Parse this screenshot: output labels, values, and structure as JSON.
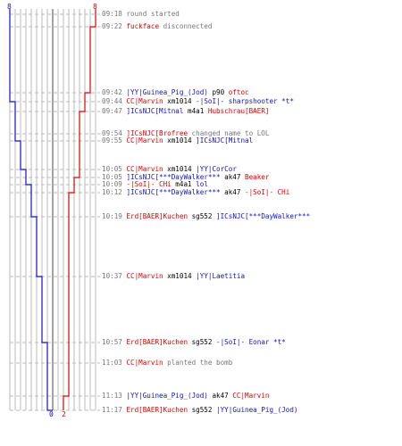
{
  "colors": {
    "team_blue": "#1010cc",
    "team_red": "#e00000",
    "muted": "#777777",
    "grid": "#bbbbbb",
    "dash": "#bbbbbb",
    "center": "#666666"
  },
  "scores": {
    "blue_top": "8",
    "red_top": "8",
    "blue_bottom": "0",
    "red_bottom": "2"
  },
  "events": [
    {
      "time": "09:18",
      "parts": [
        {
          "text": "round started",
          "style": "ev"
        }
      ]
    },
    {
      "time": "09:22",
      "parts": [
        {
          "text": "fuckface",
          "style": "red"
        },
        {
          "text": " disconnected",
          "style": "ev"
        }
      ]
    },
    {
      "time": "09:42",
      "parts": [
        {
          "text": "|YY|Guinea_Pig_(Jod)",
          "style": "blue"
        },
        {
          "text": " p90 ",
          "style": "plain"
        },
        {
          "text": "oftoc",
          "style": "red"
        }
      ]
    },
    {
      "time": "09:44",
      "parts": [
        {
          "text": "CC|Marvin",
          "style": "red"
        },
        {
          "text": " xm1014 ",
          "style": "plain"
        },
        {
          "text": "-|SoI|- sharpshooter *t*",
          "style": "blue"
        }
      ]
    },
    {
      "time": "09:47",
      "parts": [
        {
          "text": "]ICsNJC[Mitnal",
          "style": "blue"
        },
        {
          "text": " m4a1 ",
          "style": "plain"
        },
        {
          "text": "Hubschrau[BAER]",
          "style": "red"
        }
      ]
    },
    {
      "time": "09:54",
      "parts": [
        {
          "text": "]ICsNJC[Brofree",
          "style": "red"
        },
        {
          "text": " changed name to LOL",
          "style": "ev"
        }
      ]
    },
    {
      "time": "09:55",
      "parts": [
        {
          "text": "CC|Marvin",
          "style": "red"
        },
        {
          "text": " xm1014 ",
          "style": "plain"
        },
        {
          "text": "]ICsNJC[Mitnal",
          "style": "blue"
        }
      ]
    },
    {
      "time": "10:05",
      "parts": [
        {
          "text": "CC|Marvin",
          "style": "red"
        },
        {
          "text": " xm1014 ",
          "style": "plain"
        },
        {
          "text": "|YY|CorCor",
          "style": "blue"
        }
      ]
    },
    {
      "time": "10:05",
      "parts": [
        {
          "text": "]ICsNJC[***DayWalker***",
          "style": "blue"
        },
        {
          "text": " ak47 ",
          "style": "plain"
        },
        {
          "text": "Beaker",
          "style": "red"
        }
      ]
    },
    {
      "time": "10:09",
      "parts": [
        {
          "text": "-|SoI|- CHi",
          "style": "red"
        },
        {
          "text": " m4a1 ",
          "style": "plain"
        },
        {
          "text": "lol",
          "style": "blue"
        }
      ]
    },
    {
      "time": "10:12",
      "parts": [
        {
          "text": "]ICsNJC[***DayWalker***",
          "style": "blue"
        },
        {
          "text": " ak47 ",
          "style": "plain"
        },
        {
          "text": "-|SoI|- CHi",
          "style": "red"
        }
      ]
    },
    {
      "time": "10:19",
      "parts": [
        {
          "text": "Erd[BAER]Kuchen",
          "style": "red"
        },
        {
          "text": " sg552 ",
          "style": "plain"
        },
        {
          "text": "]ICsNJC[***DayWalker***",
          "style": "blue"
        }
      ]
    },
    {
      "time": "10:37",
      "parts": [
        {
          "text": "CC|Marvin",
          "style": "red"
        },
        {
          "text": " xm1014 ",
          "style": "plain"
        },
        {
          "text": "|YY|Laetitia",
          "style": "blue"
        }
      ]
    },
    {
      "time": "10:57",
      "parts": [
        {
          "text": "Erd[BAER]Kuchen",
          "style": "red"
        },
        {
          "text": " sg552 ",
          "style": "plain"
        },
        {
          "text": "-|SoI|- Eonar *t*",
          "style": "blue"
        }
      ]
    },
    {
      "time": "11:03",
      "parts": [
        {
          "text": "CC|Marvin",
          "style": "red"
        },
        {
          "text": " planted the bomb",
          "style": "ev"
        }
      ]
    },
    {
      "time": "11:13",
      "parts": [
        {
          "text": "|YY|Guinea_Pig_(Jod)",
          "style": "blue"
        },
        {
          "text": " ak47 ",
          "style": "plain"
        },
        {
          "text": "CC|Marvin",
          "style": "red"
        }
      ]
    },
    {
      "time": "11:17",
      "parts": [
        {
          "text": "Erd[BAER]Kuchen",
          "style": "red"
        },
        {
          "text": " sg552 ",
          "style": "plain"
        },
        {
          "text": "|YY|Guinea_Pig_(Jod)",
          "style": "blue"
        }
      ]
    }
  ],
  "alive_after_event": {
    "blue": [
      8,
      8,
      8,
      7,
      7,
      7,
      6,
      5,
      5,
      4,
      4,
      3,
      2,
      1,
      1,
      1,
      0
    ],
    "red": [
      8,
      7,
      6,
      6,
      5,
      5,
      5,
      5,
      4,
      4,
      3,
      3,
      3,
      3,
      3,
      2,
      2
    ]
  }
}
